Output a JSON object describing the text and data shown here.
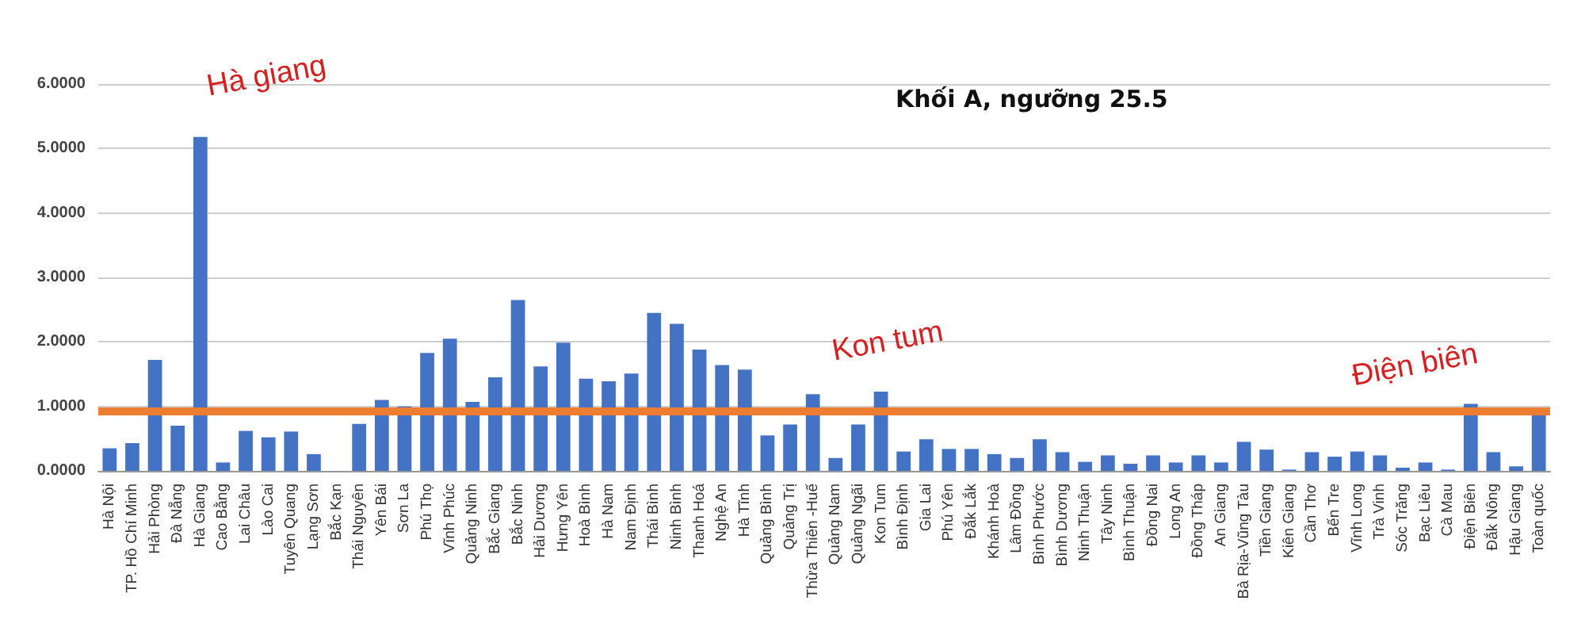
{
  "chart_data": {
    "type": "bar",
    "title": "Khối A, ngưỡng 25.5",
    "categories": [
      "Hà Nội",
      "TP. Hồ Chí Minh",
      "Hải Phòng",
      "Đà Nẵng",
      "Hà Giang",
      "Cao Bằng",
      "Lai Châu",
      "Lào Cai",
      "Tuyên Quang",
      "Lạng Sơn",
      "Bắc Kạn",
      "Thái Nguyên",
      "Yên Bái",
      "Sơn La",
      "Phú Thọ",
      "Vĩnh Phúc",
      "Quảng Ninh",
      "Bắc Giang",
      "Bắc Ninh",
      "Hải Dương",
      "Hưng Yên",
      "Hoà Bình",
      "Hà Nam",
      "Nam Định",
      "Thái Bình",
      "Ninh Bình",
      "Thanh Hoá",
      "Nghệ An",
      "Hà Tĩnh",
      "Quảng Bình",
      "Quảng Trị",
      "Thừa Thiên -Huế",
      "Quảng Nam",
      "Quảng Ngãi",
      "Kon Tum",
      "Bình Định",
      "Gia Lai",
      "Phú Yên",
      "Đắk Lắk",
      "Khánh Hoà",
      "Lâm Đồng",
      "Bình Phước",
      "Bình Dương",
      "Ninh Thuận",
      "Tây Ninh",
      "Bình Thuận",
      "Đồng Nai",
      "Long An",
      "Đồng Tháp",
      "An Giang",
      "Bà Rịa-Vũng Tàu",
      "Tiền Giang",
      "Kiên Giang",
      "Cần Thơ",
      "Bến Tre",
      "Vĩnh Long",
      "Trà Vinh",
      "Sóc Trăng",
      "Bạc Liêu",
      "Cà Mau",
      "Điện Biên",
      "Đắk Nông",
      "Hậu Giang",
      "Toàn quốc"
    ],
    "values": [
      0.35,
      0.43,
      1.72,
      0.7,
      5.18,
      0.13,
      0.62,
      0.52,
      0.61,
      0.26,
      0,
      0.73,
      1.1,
      1.0,
      1.83,
      2.05,
      1.07,
      1.45,
      2.65,
      1.62,
      1.99,
      1.43,
      1.39,
      1.51,
      2.45,
      2.28,
      1.88,
      1.64,
      1.57,
      0.55,
      0.72,
      1.19,
      0.2,
      0.72,
      1.23,
      0.3,
      0.49,
      0.34,
      0.34,
      0.26,
      0.2,
      0.49,
      0.29,
      0.14,
      0.24,
      0.11,
      0.24,
      0.13,
      0.24,
      0.13,
      0.45,
      0.33,
      0.02,
      0.29,
      0.22,
      0.3,
      0.24,
      0.05,
      0.13,
      0.02,
      1.04,
      0.29,
      0.07,
      0.93
    ],
    "color": "#4472c4",
    "ylim": [
      0,
      6
    ],
    "yticks": [
      {
        "value": 0,
        "label": "0.0000"
      },
      {
        "value": 1,
        "label": "1.0000"
      },
      {
        "value": 2,
        "label": "2.0000"
      },
      {
        "value": 3,
        "label": "3.0000"
      },
      {
        "value": 4,
        "label": "4.0000"
      },
      {
        "value": 5,
        "label": "5.0000"
      },
      {
        "value": 6,
        "label": "6.0000"
      }
    ],
    "grid": "y",
    "ref_lines": [
      {
        "axis": "y",
        "value": 0.93,
        "color": "#ed7d31"
      }
    ],
    "annotations": [
      {
        "text": "Hà giang",
        "x": "Hà Giang",
        "y": 5.18
      },
      {
        "text": "Kon tum",
        "x": "Kon Tum",
        "y": 1.23
      },
      {
        "text": "Điện biên",
        "x": "Điện Biên",
        "y": 1.04
      }
    ]
  }
}
